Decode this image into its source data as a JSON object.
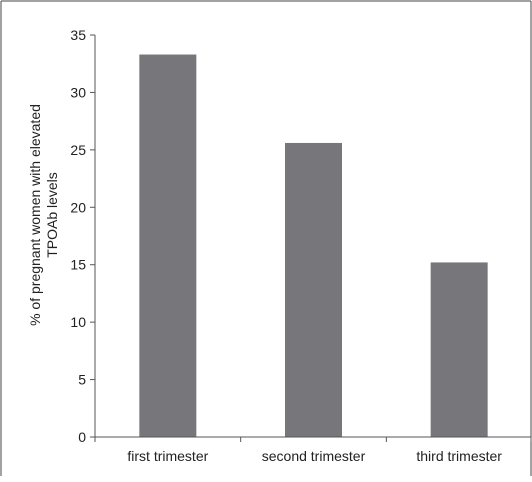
{
  "chart_data": {
    "type": "bar",
    "categories": [
      "first trimester",
      "second trimester",
      "third trimester"
    ],
    "values": [
      33.3,
      25.6,
      15.2
    ],
    "ylabel_lines": [
      "% of pregnant women with elevated",
      "TPOAb levels"
    ],
    "xlabel": "",
    "ylim": [
      0,
      35
    ],
    "yticks": [
      0,
      5,
      10,
      15,
      20,
      25,
      30,
      35
    ],
    "grid": false,
    "legend": "none",
    "bar_color": "#77777b",
    "axis_color": "#555555",
    "frame_color": "#444444"
  }
}
